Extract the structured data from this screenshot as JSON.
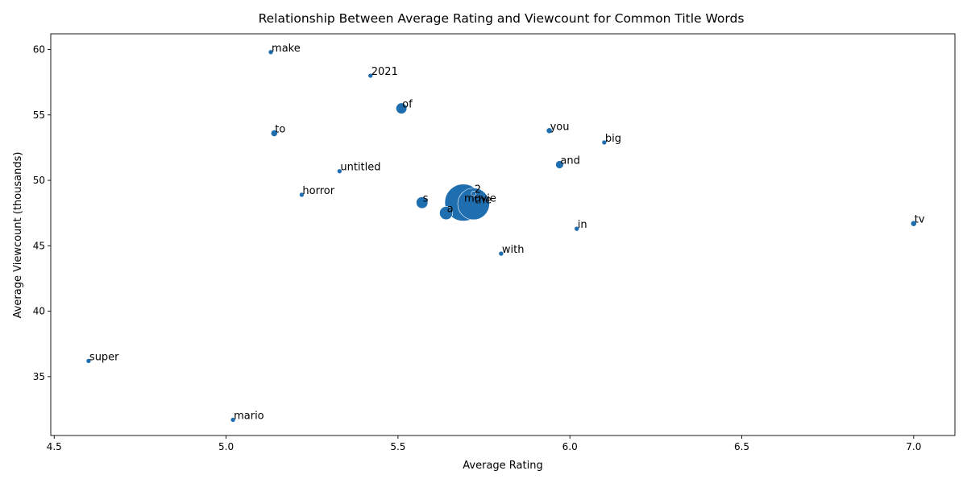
{
  "chart_data": {
    "type": "scatter",
    "title": "Relationship Between Average Rating and Viewcount for Common Title Words",
    "xlabel": "Average Rating",
    "ylabel": "Average Viewcount (thousands)",
    "xlim": [
      4.49,
      7.12
    ],
    "ylim": [
      30.5,
      61.2
    ],
    "xticks": [
      "4.5",
      "5.0",
      "5.5",
      "6.0",
      "6.5",
      "7.0"
    ],
    "yticks": [
      "35",
      "40",
      "45",
      "50",
      "55",
      "60"
    ],
    "grid": false,
    "legend": "none",
    "marker_color": "#1f6fb0",
    "points": [
      {
        "word": "make",
        "x": 5.13,
        "y": 59.8,
        "count": 1
      },
      {
        "word": "2021",
        "x": 5.42,
        "y": 58.0,
        "count": 1
      },
      {
        "word": "of",
        "x": 5.51,
        "y": 55.5,
        "count": 6
      },
      {
        "word": "to",
        "x": 5.14,
        "y": 53.6,
        "count": 2
      },
      {
        "word": "you",
        "x": 5.94,
        "y": 53.8,
        "count": 1.5
      },
      {
        "word": "big",
        "x": 6.1,
        "y": 52.9,
        "count": 1
      },
      {
        "word": "and",
        "x": 5.97,
        "y": 51.2,
        "count": 3
      },
      {
        "word": "untitled",
        "x": 5.33,
        "y": 50.7,
        "count": 1
      },
      {
        "word": "horror",
        "x": 5.22,
        "y": 48.9,
        "count": 1
      },
      {
        "word": "2",
        "x": 5.72,
        "y": 49.0,
        "count": 1
      },
      {
        "word": "movie",
        "x": 5.69,
        "y": 48.3,
        "count": 75
      },
      {
        "word": "the",
        "x": 5.72,
        "y": 48.2,
        "count": 55
      },
      {
        "word": "s",
        "x": 5.57,
        "y": 48.3,
        "count": 7
      },
      {
        "word": "a",
        "x": 5.64,
        "y": 47.5,
        "count": 9
      },
      {
        "word": "tv",
        "x": 7.0,
        "y": 46.7,
        "count": 1.5
      },
      {
        "word": "in",
        "x": 6.02,
        "y": 46.3,
        "count": 1
      },
      {
        "word": "with",
        "x": 5.8,
        "y": 44.4,
        "count": 1
      },
      {
        "word": "super",
        "x": 4.6,
        "y": 36.2,
        "count": 1
      },
      {
        "word": "mario",
        "x": 5.02,
        "y": 31.7,
        "count": 1
      }
    ]
  }
}
